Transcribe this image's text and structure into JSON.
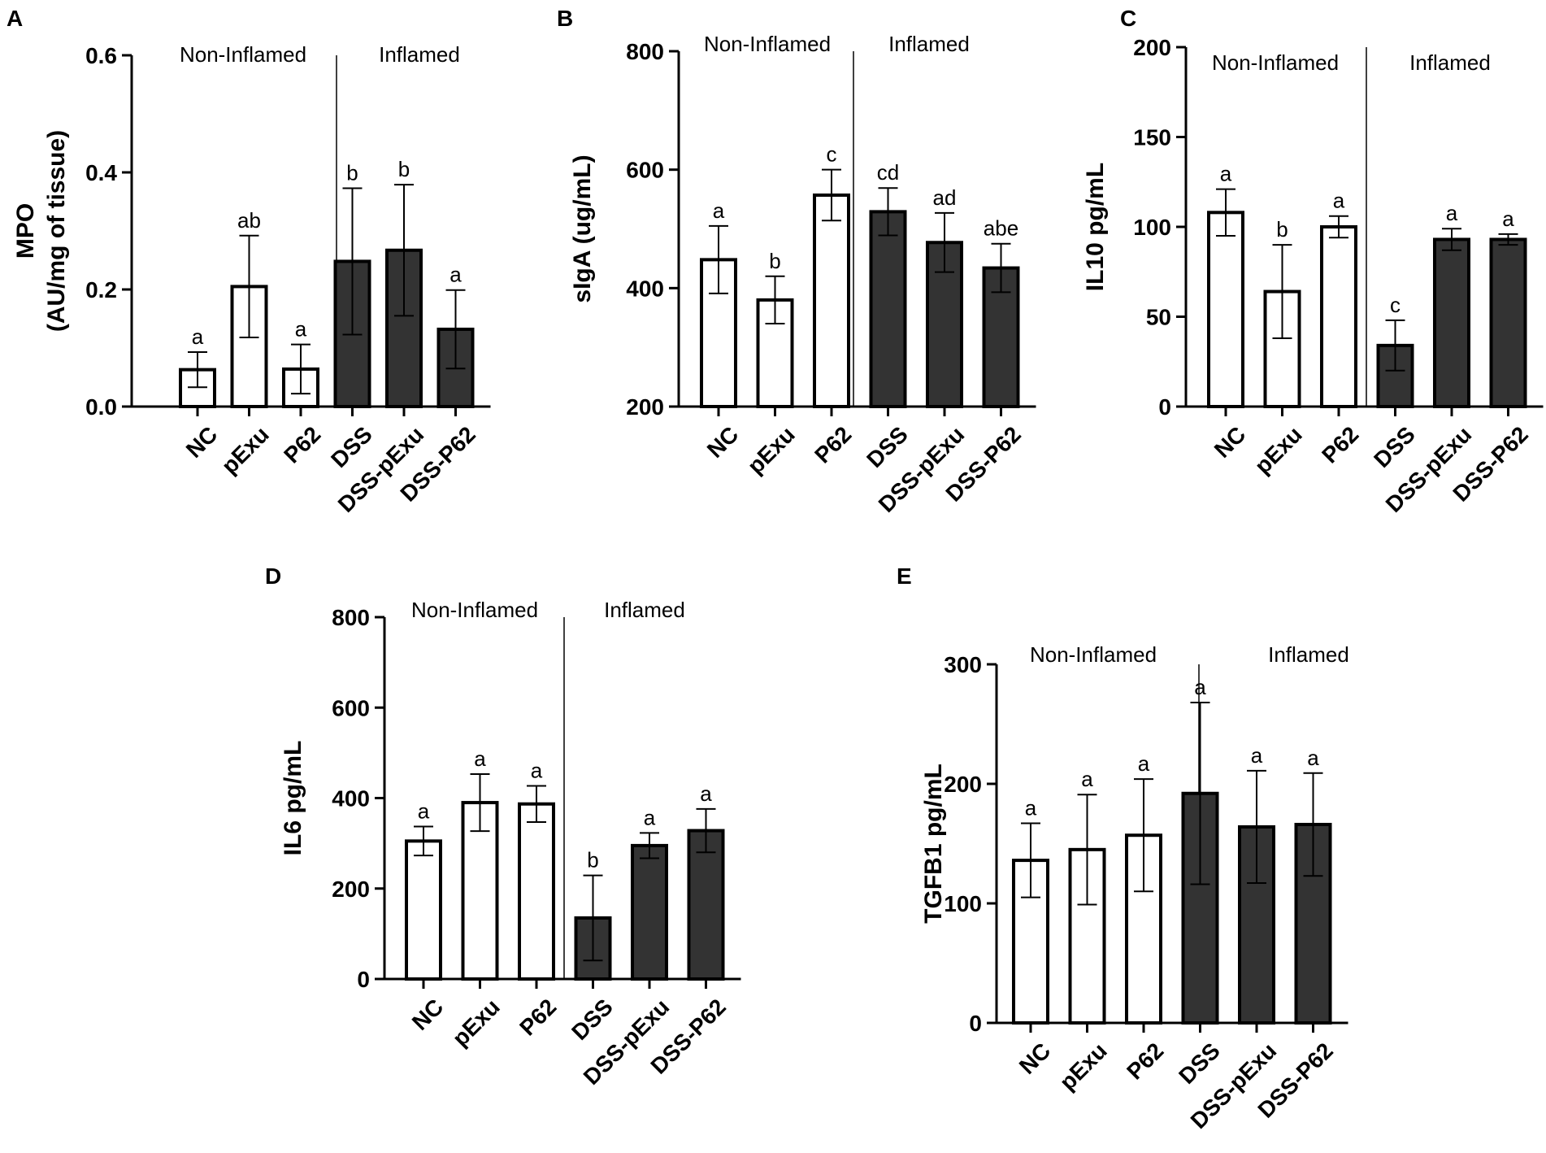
{
  "chart_data": [
    {
      "type": "bar",
      "panel": "A",
      "categories": [
        "NC",
        "pExu",
        "P62",
        "DSS",
        "DSS-pExu",
        "DSS-P62"
      ],
      "values": [
        0.063,
        0.205,
        0.064,
        0.248,
        0.267,
        0.132
      ],
      "errors": [
        0.03,
        0.087,
        0.042,
        0.125,
        0.112,
        0.067
      ],
      "significance": [
        "a",
        "ab",
        "a",
        "b",
        "b",
        "a"
      ],
      "groups": [
        "Non-Inflamed",
        "Inflamed"
      ],
      "ylabel_lines": [
        "MPO",
        "(AU/mg of tissue)"
      ],
      "yticks": [
        0.0,
        0.2,
        0.4,
        0.6
      ],
      "ytick_labels": [
        "0.0",
        "0.2",
        "0.4",
        "0.6"
      ],
      "ylim": [
        0,
        0.6
      ],
      "bar_colors": [
        "#ffffff",
        "#ffffff",
        "#ffffff",
        "#333333",
        "#333333",
        "#333333"
      ]
    },
    {
      "type": "bar",
      "panel": "B",
      "categories": [
        "NC",
        "pExu",
        "P62",
        "DSS",
        "DSS-pExu",
        "DSS-P62"
      ],
      "values": [
        448,
        380,
        557,
        529,
        477,
        434
      ],
      "errors": [
        57,
        40,
        43,
        40,
        50,
        41
      ],
      "significance": [
        "a",
        "b",
        "c",
        "cd",
        "ad",
        "abe"
      ],
      "groups": [
        "Non-Inflamed",
        "Inflamed"
      ],
      "ylabel_lines": [
        "sIgA (ug/mL)"
      ],
      "yticks": [
        200,
        400,
        600,
        800
      ],
      "ytick_labels": [
        "200",
        "400",
        "600",
        "800"
      ],
      "ylim": [
        200,
        800
      ],
      "bar_colors": [
        "#ffffff",
        "#ffffff",
        "#ffffff",
        "#333333",
        "#333333",
        "#333333"
      ]
    },
    {
      "type": "bar",
      "panel": "C",
      "categories": [
        "NC",
        "pExu",
        "P62",
        "DSS",
        "DSS-pExu",
        "DSS-P62"
      ],
      "values": [
        108,
        64,
        100,
        34,
        93,
        93
      ],
      "errors": [
        13,
        26,
        6,
        14,
        6,
        3
      ],
      "significance": [
        "a",
        "b",
        "a",
        "c",
        "a",
        "a"
      ],
      "groups": [
        "Non-Inflamed",
        "Inflamed"
      ],
      "ylabel_lines": [
        "IL10 pg/mL"
      ],
      "yticks": [
        0,
        50,
        100,
        150,
        200
      ],
      "ytick_labels": [
        "0",
        "50",
        "100",
        "150",
        "200"
      ],
      "ylim": [
        0,
        200
      ],
      "bar_colors": [
        "#ffffff",
        "#ffffff",
        "#ffffff",
        "#333333",
        "#333333",
        "#333333"
      ]
    },
    {
      "type": "bar",
      "panel": "D",
      "categories": [
        "NC",
        "pExu",
        "P62",
        "DSS",
        "DSS-pExu",
        "DSS-P62"
      ],
      "values": [
        305,
        390,
        387,
        135,
        295,
        328
      ],
      "errors": [
        32,
        63,
        40,
        94,
        28,
        48
      ],
      "significance": [
        "a",
        "a",
        "a",
        "b",
        "a",
        "a"
      ],
      "groups": [
        "Non-Inflamed",
        "Inflamed"
      ],
      "ylabel_lines": [
        "IL6 pg/mL"
      ],
      "yticks": [
        0,
        200,
        400,
        600,
        800
      ],
      "ytick_labels": [
        "0",
        "200",
        "400",
        "600",
        "800"
      ],
      "ylim": [
        0,
        800
      ],
      "bar_colors": [
        "#ffffff",
        "#ffffff",
        "#ffffff",
        "#333333",
        "#333333",
        "#333333"
      ]
    },
    {
      "type": "bar",
      "panel": "E",
      "categories": [
        "NC",
        "pExu",
        "P62",
        "DSS",
        "DSS-pExu",
        "DSS-P62"
      ],
      "values": [
        136,
        145,
        157,
        192,
        164,
        166
      ],
      "errors": [
        31,
        46,
        47,
        76,
        47,
        43
      ],
      "significance": [
        "a",
        "a",
        "a",
        "a",
        "a",
        "a"
      ],
      "groups": [
        "Non-Inflamed",
        "Inflamed"
      ],
      "ylabel_lines": [
        "TGFB1 pg/mL"
      ],
      "yticks": [
        0,
        100,
        200,
        300
      ],
      "ytick_labels": [
        "0",
        "100",
        "200",
        "300"
      ],
      "ylim": [
        0,
        300
      ],
      "bar_colors": [
        "#ffffff",
        "#ffffff",
        "#ffffff",
        "#333333",
        "#333333",
        "#333333"
      ]
    }
  ]
}
